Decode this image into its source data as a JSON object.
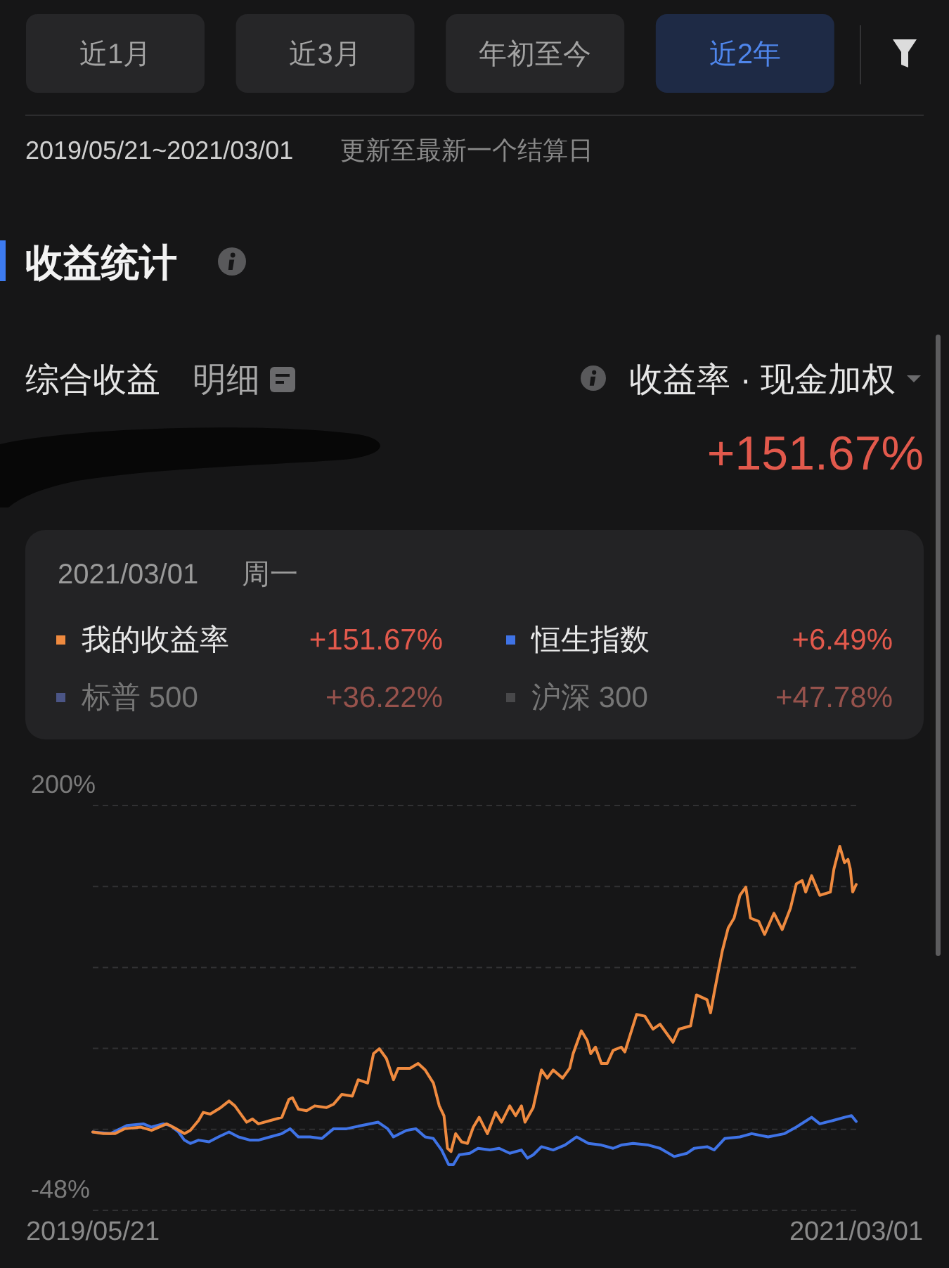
{
  "chart_data": {
    "type": "line",
    "title": "收益统计",
    "annotations": [
      "近1月",
      "近3月",
      "年初至今",
      "近2年",
      "2019/05/21~2021/03/01",
      "更新至最新一个结算日",
      "综合收益",
      "明细",
      "收益率 · 现金加权",
      "+151.67%",
      "2021/03/01",
      "周一",
      "+151.67%",
      "+6.49%",
      "标普 500",
      "+36.22%",
      "沪深 300",
      "+47.78%"
    ],
    "xlim": [
      "2019-05-21",
      "2021-03-01"
    ],
    "xticks": [
      {
        "value": "2019-05-21",
        "label": "2019/05/21"
      },
      {
        "value": "2021-03-01",
        "label": "2021/03/01"
      }
    ],
    "ylim": [
      -48,
      200
    ],
    "yticks": [
      {
        "value": 200,
        "label": "200%"
      },
      {
        "value": 150.4,
        "label": null
      },
      {
        "value": 100.8,
        "label": null
      },
      {
        "value": 51.2,
        "label": null
      },
      {
        "value": 1.6,
        "label": null
      },
      {
        "value": -48,
        "label": "-48%"
      }
    ],
    "grid": "y",
    "legend": "top",
    "series": [
      {
        "name": "我的收益率",
        "color": "#ef8a3f",
        "x": [
          "2019-05-21",
          "2019-05-30",
          "2019-06-09",
          "2019-06-17",
          "2019-07-01",
          "2019-07-10",
          "2019-07-23",
          "2019-07-31",
          "2019-08-07",
          "2019-08-12",
          "2019-08-19",
          "2019-08-23",
          "2019-08-29",
          "2019-09-07",
          "2019-09-14",
          "2019-09-19",
          "2019-09-29",
          "2019-10-04",
          "2019-10-09",
          "2019-10-19",
          "2019-10-29",
          "2019-11-04",
          "2019-11-07",
          "2019-11-12",
          "2019-11-19",
          "2019-11-26",
          "2019-12-06",
          "2019-12-12",
          "2019-12-19",
          "2019-12-28",
          "2020-01-02",
          "2020-01-10",
          "2020-01-15",
          "2020-01-20",
          "2020-01-26",
          "2020-02-01",
          "2020-02-05",
          "2020-02-15",
          "2020-02-22",
          "2020-02-28",
          "2020-03-06",
          "2020-03-11",
          "2020-03-15",
          "2020-03-18",
          "2020-03-21",
          "2020-03-25",
          "2020-03-30",
          "2020-04-04",
          "2020-04-09",
          "2020-04-14",
          "2020-04-21",
          "2020-04-28",
          "2020-05-03",
          "2020-05-10",
          "2020-05-15",
          "2020-05-20",
          "2020-05-23",
          "2020-05-30",
          "2020-06-06",
          "2020-06-11",
          "2020-06-16",
          "2020-06-24",
          "2020-06-30",
          "2020-07-03",
          "2020-07-10",
          "2020-07-15",
          "2020-07-18",
          "2020-07-22",
          "2020-07-27",
          "2020-08-01",
          "2020-08-06",
          "2020-08-13",
          "2020-08-16",
          "2020-08-26",
          "2020-09-02",
          "2020-09-09",
          "2020-09-15",
          "2020-09-26",
          "2020-10-01",
          "2020-10-11",
          "2020-10-16",
          "2020-10-25",
          "2020-10-28",
          "2020-10-31",
          "2020-11-07",
          "2020-11-12",
          "2020-11-17",
          "2020-11-22",
          "2020-11-27",
          "2020-12-01",
          "2020-12-08",
          "2020-12-13",
          "2020-12-21",
          "2020-12-28",
          "2021-01-04",
          "2021-01-09",
          "2021-01-14",
          "2021-01-17",
          "2021-01-22",
          "2021-01-29",
          "2021-02-07",
          "2021-02-10",
          "2021-02-15",
          "2021-02-19",
          "2021-02-22",
          "2021-02-24",
          "2021-02-26",
          "2021-03-01"
        ],
        "values": [
          0,
          -1,
          -1,
          2,
          3,
          1,
          5,
          2,
          -1,
          1,
          7,
          12,
          11,
          15,
          19,
          16,
          6,
          8,
          5,
          7,
          9,
          20,
          21,
          14,
          13,
          16,
          15,
          17,
          23,
          22,
          32,
          30,
          48,
          51,
          45,
          32,
          39,
          39,
          42,
          38,
          30,
          16,
          10,
          -10,
          -12,
          -1,
          -6,
          -7,
          3,
          9,
          -1,
          12,
          6,
          16,
          10,
          16,
          6,
          15,
          38,
          33,
          38,
          33,
          39,
          48,
          62,
          56,
          48,
          52,
          42,
          42,
          50,
          52,
          49,
          72,
          71,
          63,
          66,
          55,
          63,
          65,
          84,
          81,
          73,
          85,
          111,
          125,
          131,
          145,
          150,
          131,
          129,
          121,
          134,
          124,
          137,
          152,
          154,
          147,
          157,
          145,
          147,
          161,
          175,
          165,
          167,
          161,
          147,
          151.67
        ]
      },
      {
        "name": "恒生指数",
        "color": "#3f73e6",
        "x": [
          "2019-05-21",
          "2019-06-05",
          "2019-06-19",
          "2019-07-03",
          "2019-07-10",
          "2019-07-20",
          "2019-07-26",
          "2019-08-02",
          "2019-08-07",
          "2019-08-12",
          "2019-08-19",
          "2019-08-28",
          "2019-09-05",
          "2019-09-14",
          "2019-09-22",
          "2019-10-02",
          "2019-10-09",
          "2019-10-19",
          "2019-10-29",
          "2019-11-05",
          "2019-11-12",
          "2019-11-22",
          "2019-12-02",
          "2019-12-12",
          "2019-12-23",
          "2020-01-05",
          "2020-01-19",
          "2020-01-27",
          "2020-02-01",
          "2020-02-12",
          "2020-02-20",
          "2020-02-28",
          "2020-03-06",
          "2020-03-13",
          "2020-03-19",
          "2020-03-23",
          "2020-03-28",
          "2020-04-06",
          "2020-04-13",
          "2020-04-23",
          "2020-05-01",
          "2020-05-10",
          "2020-05-20",
          "2020-05-25",
          "2020-05-30",
          "2020-06-06",
          "2020-06-16",
          "2020-06-26",
          "2020-07-06",
          "2020-07-16",
          "2020-07-27",
          "2020-08-06",
          "2020-08-13",
          "2020-08-23",
          "2020-09-05",
          "2020-09-15",
          "2020-09-27",
          "2020-10-08",
          "2020-10-14",
          "2020-10-25",
          "2020-10-31",
          "2020-11-09",
          "2020-11-22",
          "2020-12-02",
          "2020-12-16",
          "2020-12-30",
          "2021-01-09",
          "2021-01-22",
          "2021-01-29",
          "2021-02-09",
          "2021-02-19",
          "2021-02-25",
          "2021-03-01"
        ],
        "values": [
          0,
          -1,
          4,
          5,
          3,
          5,
          4,
          0,
          -5,
          -7,
          -5,
          -6,
          -3,
          0,
          -3,
          -5,
          -5,
          -3,
          -1,
          2,
          -3,
          -3,
          -4,
          2,
          2,
          4,
          6,
          2,
          -3,
          1,
          2,
          -3,
          -4,
          -11,
          -20,
          -20,
          -14,
          -13,
          -10,
          -11,
          -10,
          -13,
          -11,
          -16,
          -14,
          -9,
          -11,
          -8,
          -3,
          -7,
          -8,
          -10,
          -8,
          -7,
          -8,
          -10,
          -15,
          -13,
          -10,
          -9,
          -11,
          -4,
          -3,
          -1,
          -3,
          -1,
          3,
          9,
          5,
          7,
          9,
          10,
          6.49
        ]
      }
    ]
  }
}
